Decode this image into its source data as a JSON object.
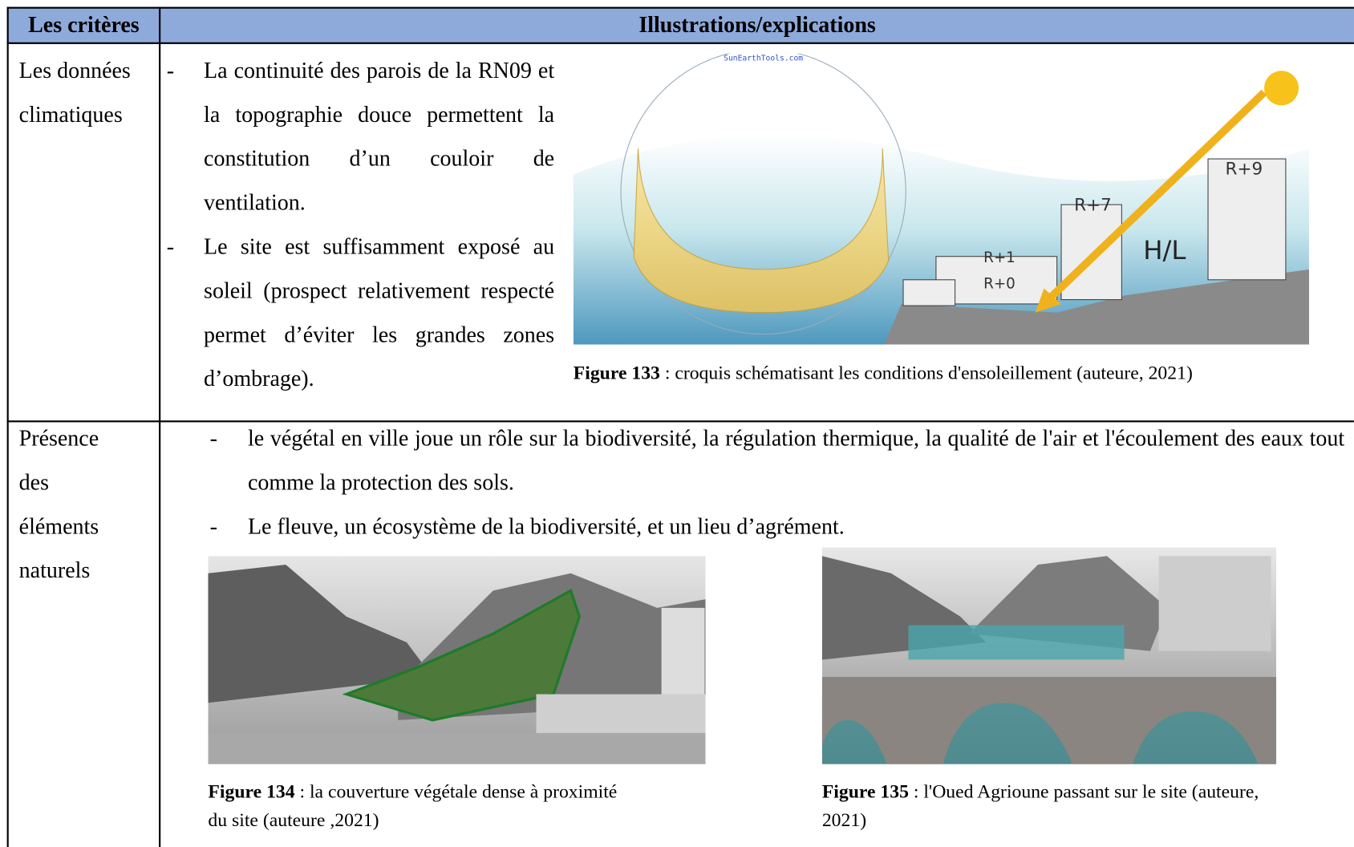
{
  "table": {
    "header": [
      "Les critères",
      "Illustrations/explications"
    ],
    "bullet_marker": "-",
    "rows": [
      {
        "criterion": "Les données climatiques",
        "bullets": [
          "La continuité des parois de la RN09 et la topographie douce permettent la constitution d’un couloir de ventilation.",
          "Le site est suffisamment exposé au soleil (prospect relativement respecté permet d’éviter les grandes zones d’ombrage)."
        ],
        "figures": [
          {
            "label": "Figure 133",
            "caption": " : croquis schématisant les conditions d'ensoleillement (auteure, 2021)"
          }
        ]
      },
      {
        "criterion": "Présence des éléments naturels",
        "bullets": [
          "le végétal en ville joue un rôle sur la biodiversité, la régulation thermique, la qualité de l'air et l'écoulement des eaux tout comme la protection des sols.",
          "Le fleuve, un écosystème de la biodiversité, et un lieu d’agrément."
        ],
        "figures": [
          {
            "label": "Figure 134",
            "caption": " : la couverture végétale dense à proximité du site (auteure ,2021)"
          },
          {
            "label": "Figure 135",
            "caption": " : l'Oued Agrioune passant sur le site (auteure, 2021)"
          }
        ]
      }
    ]
  },
  "sketch": {
    "source": "SunEarthTools.com",
    "labels": [
      "R+9",
      "R+7",
      "R+1",
      "R+0",
      "H/L"
    ]
  }
}
